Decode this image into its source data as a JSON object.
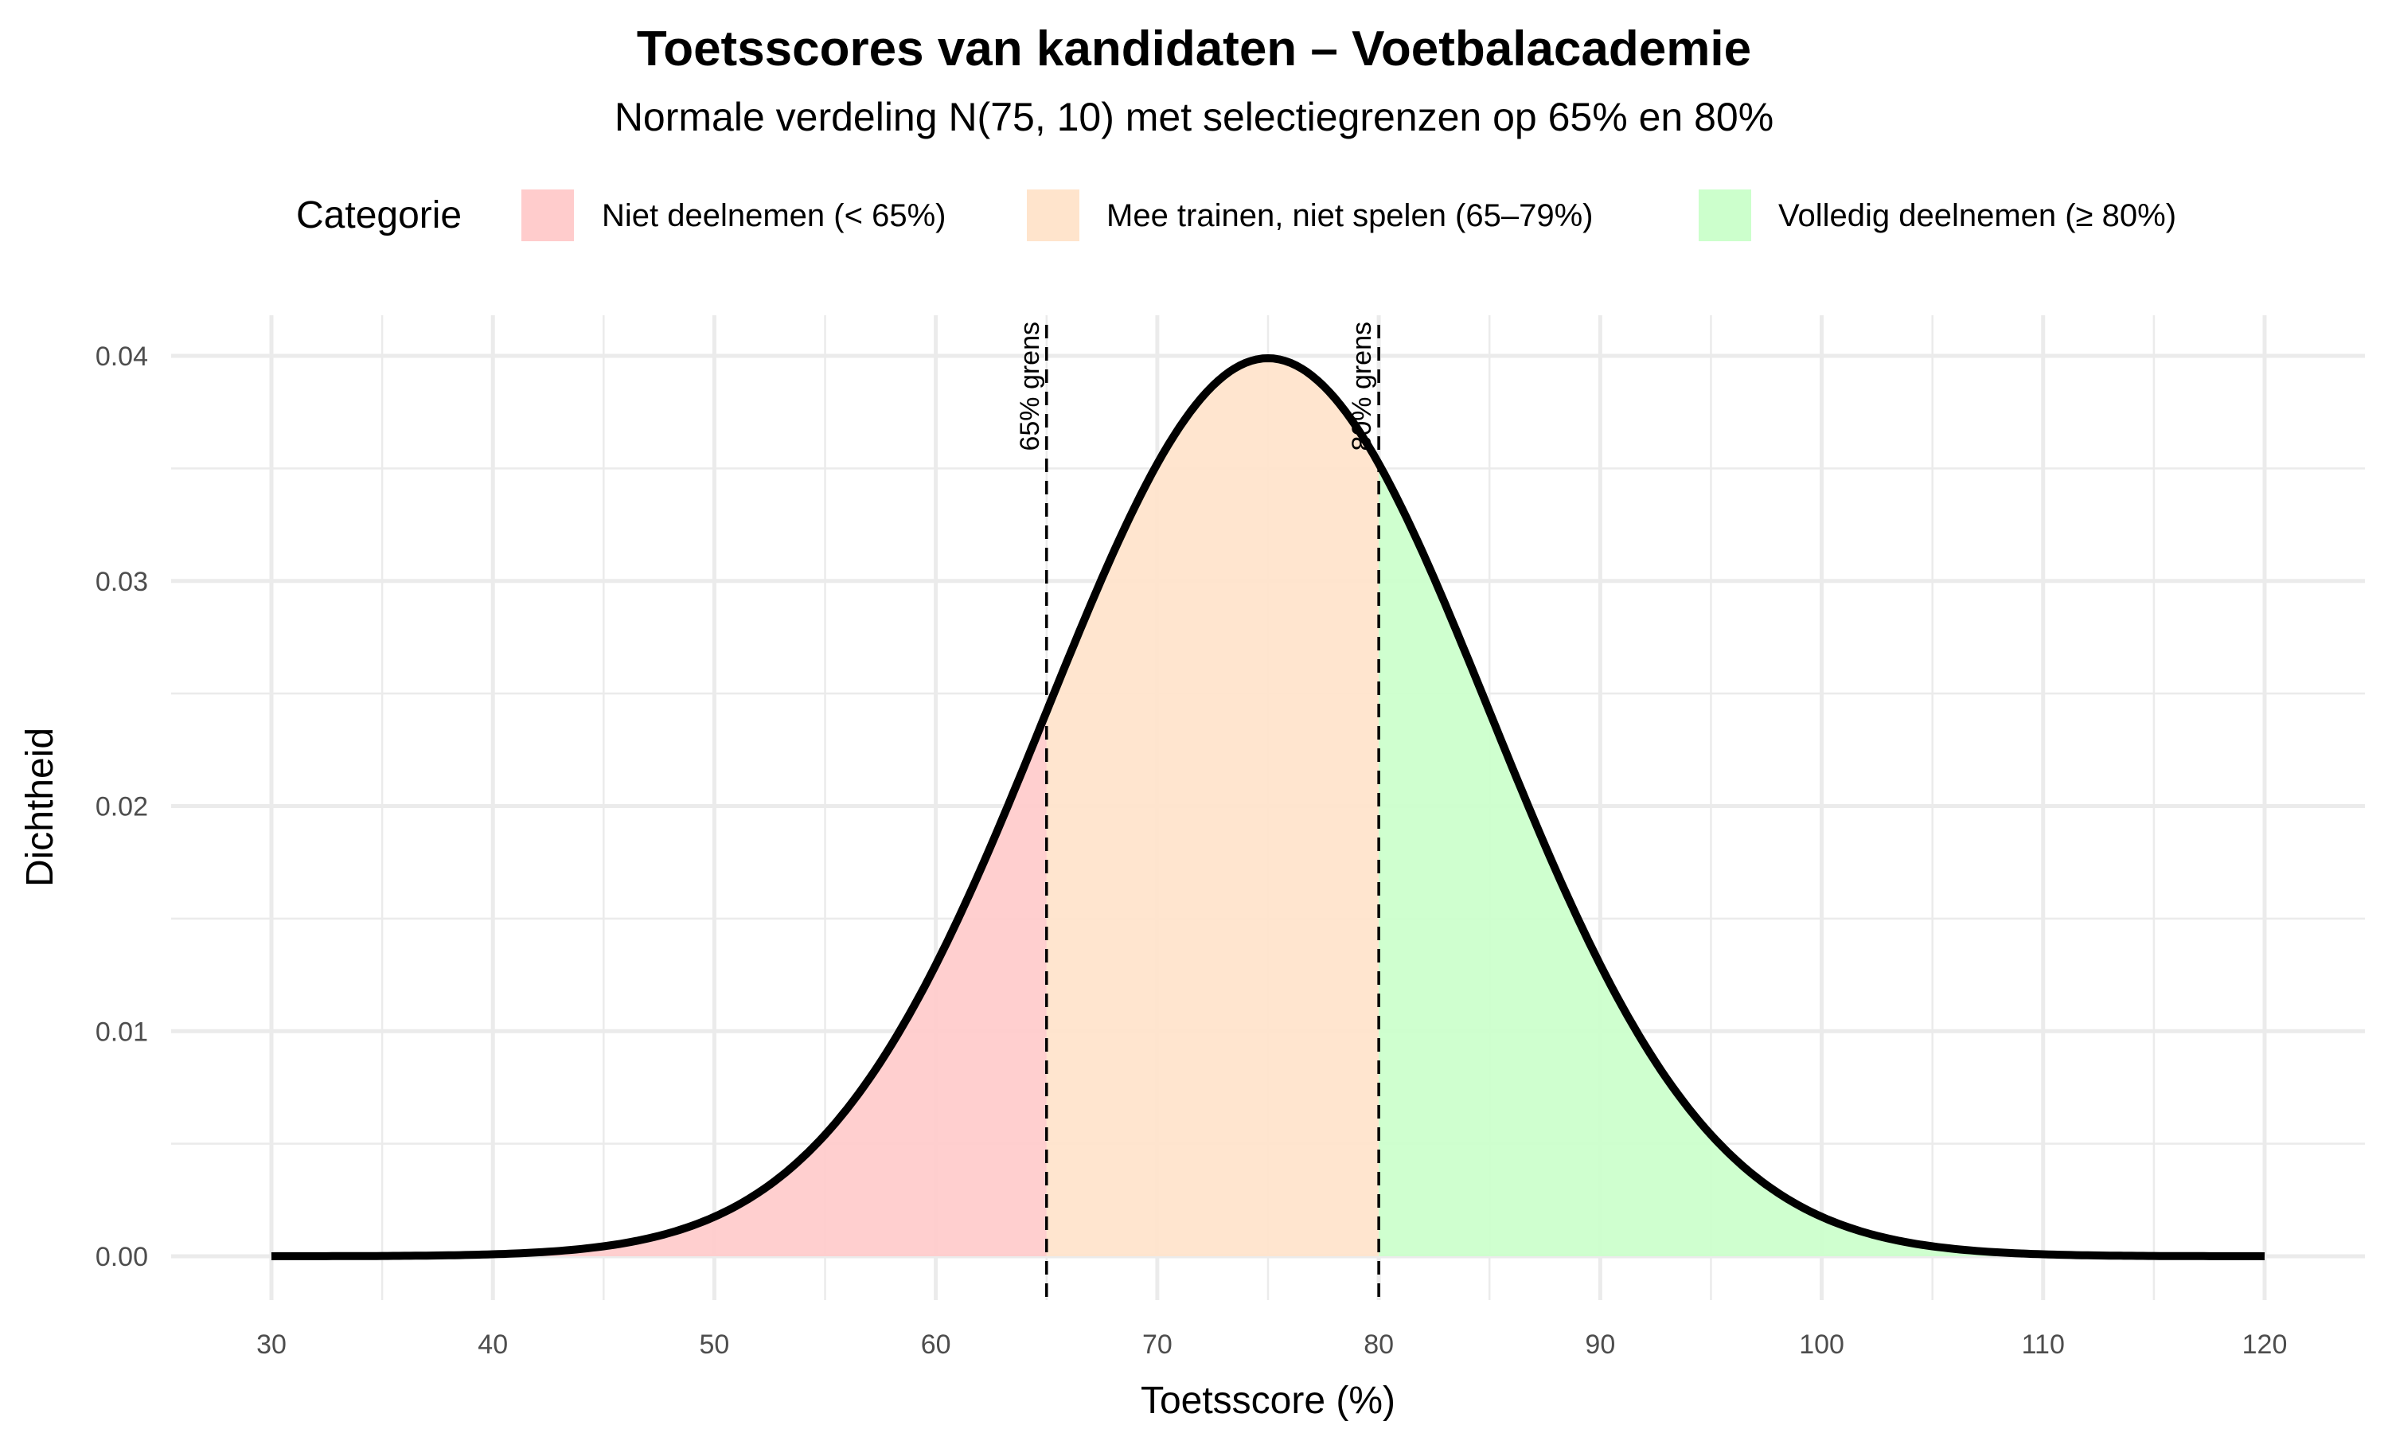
{
  "title": "Toetsscores van kandidaten – Voetbalacademie",
  "subtitle": "Normale verdeling N(75, 10) met selectiegrenzen op 65% en 80%",
  "legend": {
    "title": "Categorie",
    "items": [
      {
        "label": "Niet deelnemen (< 65%)",
        "color": "#FFCCCC"
      },
      {
        "label": "Mee trainen, niet spelen (65–79%)",
        "color": "#FFE4CC"
      },
      {
        "label": "Volledig deelnemen (≥ 80%)",
        "color": "#CCFFCC"
      }
    ]
  },
  "axes": {
    "x_title": "Toetsscore (%)",
    "y_title": "Dichtheid",
    "x_ticks": [
      "30",
      "40",
      "50",
      "60",
      "70",
      "80",
      "90",
      "100",
      "110",
      "120"
    ],
    "y_ticks": [
      "0.00",
      "0.01",
      "0.02",
      "0.03",
      "0.04"
    ]
  },
  "thresholds": [
    {
      "value": 65,
      "label": "65% grens"
    },
    {
      "value": 80,
      "label": "80% grens"
    }
  ],
  "chart_data": {
    "type": "area",
    "title": "Toetsscores van kandidaten – Voetbalacademie",
    "subtitle": "Normale verdeling N(75, 10) met selectiegrenzen op 65% en 80%",
    "xlabel": "Toetsscore (%)",
    "ylabel": "Dichtheid",
    "distribution": {
      "name": "normal",
      "mean": 75,
      "sd": 10
    },
    "xlim": [
      30,
      120
    ],
    "ylim": [
      0,
      0.04
    ],
    "x_ticks": [
      30,
      40,
      50,
      60,
      70,
      80,
      90,
      100,
      110,
      120
    ],
    "y_ticks": [
      0.0,
      0.01,
      0.02,
      0.03,
      0.04
    ],
    "x": [
      30,
      35,
      40,
      45,
      50,
      55,
      60,
      65,
      70,
      75,
      80,
      85,
      90,
      95,
      100,
      105,
      110,
      115,
      120
    ],
    "series": [
      {
        "name": "Dichtheid",
        "values": [
          1.6e-06,
          1.34e-05,
          8.73e-05,
          0.000443,
          0.00175,
          0.0054,
          0.01295,
          0.0242,
          0.0352,
          0.0399,
          0.0352,
          0.0242,
          0.01295,
          0.0054,
          0.00175,
          0.000443,
          8.73e-05,
          1.34e-05,
          1.6e-06
        ]
      }
    ],
    "regions": [
      {
        "name": "Niet deelnemen (< 65%)",
        "from": 30,
        "to": 65,
        "color": "#FFCCCC"
      },
      {
        "name": "Mee trainen, niet spelen (65–79%)",
        "from": 65,
        "to": 80,
        "color": "#FFE4CC"
      },
      {
        "name": "Volledig deelnemen (≥ 80%)",
        "from": 80,
        "to": 120,
        "color": "#CCFFCC"
      }
    ],
    "vlines": [
      {
        "x": 65,
        "label": "65% grens",
        "style": "dashed"
      },
      {
        "x": 80,
        "label": "80% grens",
        "style": "dashed"
      }
    ],
    "legend_title": "Categorie",
    "legend_position": "top",
    "grid": true
  }
}
